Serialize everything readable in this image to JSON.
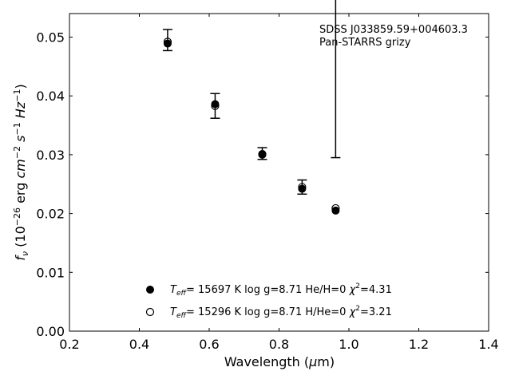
{
  "chart_data": {
    "type": "scatter",
    "xlabel_main": "Wavelength (",
    "xlabel_mu": "μ",
    "xlabel_unit": "m)",
    "ylabel_f": "f",
    "ylabel_nu": "ν",
    "ylabel_rest1": " (10",
    "ylabel_exp1": "−26",
    "ylabel_rest2": " erg ",
    "ylabel_cm": "cm",
    "ylabel_exp2": "−2",
    "ylabel_s": " s",
    "ylabel_exp3": "−1",
    "ylabel_hz": " Hz",
    "ylabel_exp4": "−1",
    "ylabel_close": ")",
    "xlim": [
      0.2,
      1.4
    ],
    "ylim": [
      0.0,
      0.054
    ],
    "xticks": [
      0.2,
      0.4,
      0.6,
      0.8,
      1.0,
      1.2,
      1.4
    ],
    "xtick_labels": [
      "0.2",
      "0.4",
      "0.6",
      "0.8",
      "1.0",
      "1.2",
      "1.4"
    ],
    "yticks": [
      0.0,
      0.01,
      0.02,
      0.03,
      0.04,
      0.05
    ],
    "ytick_labels": [
      "0.00",
      "0.01",
      "0.02",
      "0.03",
      "0.04",
      "0.05"
    ],
    "annotation_lines": [
      "SDSS J033859.59+004603.3",
      "Pan-STARRS grizy"
    ],
    "observed": {
      "x": [
        0.481,
        0.617,
        0.752,
        0.866,
        0.962
      ],
      "y": [
        0.0495,
        0.0383,
        0.0302,
        0.0245,
        0.0452
      ],
      "yerr": [
        0.0018,
        0.0021,
        0.001,
        0.0012,
        0.0157
      ]
    },
    "series": [
      {
        "marker": "filled",
        "legend_T": "T",
        "legend_eff": "eff",
        "legend_text": "= 15697 K  log g=8.71  He/H=0  ",
        "legend_chi": "χ",
        "legend_chi_exp": "2",
        "legend_chi_val": "=4.31",
        "x": [
          0.481,
          0.617,
          0.752,
          0.866,
          0.962
        ],
        "y": [
          0.0489,
          0.0386,
          0.03,
          0.0242,
          0.0205
        ]
      },
      {
        "marker": "open",
        "legend_T": "T",
        "legend_eff": "eff",
        "legend_text": "= 15296 K  log g=8.71  H/He=0  ",
        "legend_chi": "χ",
        "legend_chi_exp": "2",
        "legend_chi_val": "=3.21",
        "x": [
          0.481,
          0.617,
          0.752,
          0.866,
          0.962
        ],
        "y": [
          0.0492,
          0.0383,
          0.0301,
          0.0245,
          0.0209
        ]
      }
    ],
    "legend_position": "lower-center",
    "grid": false
  }
}
